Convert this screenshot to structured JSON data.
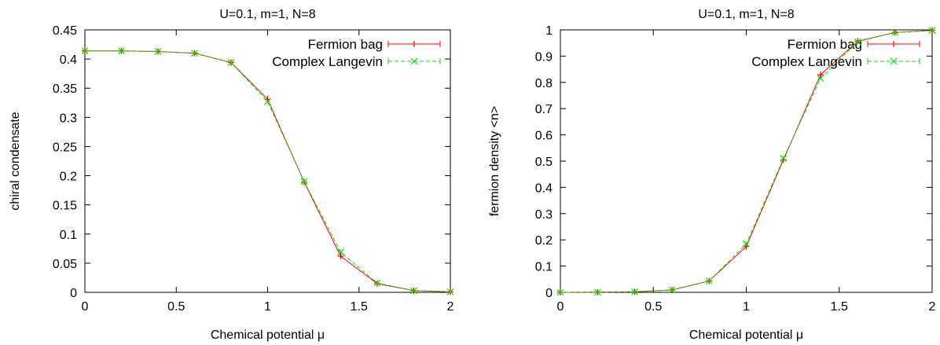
{
  "chart_data": [
    {
      "type": "line",
      "title": "U=0.1, m=1, N=8",
      "xlabel": "Chemical potential μ",
      "ylabel": "chiral condensate",
      "xlim": [
        0,
        2
      ],
      "ylim": [
        0,
        0.45
      ],
      "xticks": [
        0,
        0.5,
        1,
        1.5,
        2
      ],
      "xtick_labels": [
        "0",
        "0.5",
        "1",
        "1.5",
        "2"
      ],
      "yticks": [
        0,
        0.05,
        0.1,
        0.15,
        0.2,
        0.25,
        0.3,
        0.35,
        0.4,
        0.45
      ],
      "ytick_labels": [
        "0",
        "0.05",
        "0.1",
        "0.15",
        "0.2",
        "0.25",
        "0.3",
        "0.35",
        "0.4",
        "0.45"
      ],
      "grid": false,
      "legend_position": "top-right",
      "x": [
        0,
        0.2,
        0.4,
        0.6,
        0.8,
        1.0,
        1.2,
        1.4,
        1.6,
        1.8,
        2.0
      ],
      "series": [
        {
          "name": "Fermion bag",
          "color": "#ff0000",
          "line_style": "solid",
          "marker": "plus",
          "values": [
            0.414,
            0.414,
            0.413,
            0.41,
            0.394,
            0.331,
            0.189,
            0.062,
            0.015,
            0.003,
            0.0008
          ]
        },
        {
          "name": "Complex Langevin",
          "color": "#00e000",
          "line_style": "dashed",
          "marker": "x",
          "values": [
            0.414,
            0.414,
            0.413,
            0.41,
            0.394,
            0.327,
            0.19,
            0.069,
            0.016,
            0.003,
            0.001
          ]
        }
      ]
    },
    {
      "type": "line",
      "title": "U=0.1, m=1, N=8",
      "xlabel": "Chemical potential μ",
      "ylabel": "fermion density <n>",
      "xlim": [
        0,
        2
      ],
      "ylim": [
        0,
        1
      ],
      "xticks": [
        0,
        0.5,
        1,
        1.5,
        2
      ],
      "xtick_labels": [
        "0",
        "0.5",
        "1",
        "1.5",
        "2"
      ],
      "yticks": [
        0,
        0.1,
        0.2,
        0.3,
        0.4,
        0.5,
        0.6,
        0.7,
        0.8,
        0.9,
        1
      ],
      "ytick_labels": [
        "0",
        "0.1",
        "0.2",
        "0.3",
        "0.4",
        "0.5",
        "0.6",
        "0.7",
        "0.8",
        "0.9",
        "1"
      ],
      "grid": false,
      "legend_position": "top-right",
      "x": [
        0,
        0.2,
        0.4,
        0.6,
        0.8,
        1.0,
        1.2,
        1.4,
        1.6,
        1.8,
        2.0
      ],
      "series": [
        {
          "name": "Fermion bag",
          "color": "#ff0000",
          "line_style": "solid",
          "marker": "plus",
          "values": [
            0.0,
            0.0005,
            0.002,
            0.009,
            0.043,
            0.175,
            0.505,
            0.829,
            0.957,
            0.99,
            0.998
          ]
        },
        {
          "name": "Complex Langevin",
          "color": "#00e000",
          "line_style": "dashed",
          "marker": "x",
          "values": [
            0.0,
            0.0005,
            0.002,
            0.009,
            0.043,
            0.185,
            0.51,
            0.815,
            0.955,
            0.99,
            0.998
          ]
        }
      ]
    }
  ]
}
